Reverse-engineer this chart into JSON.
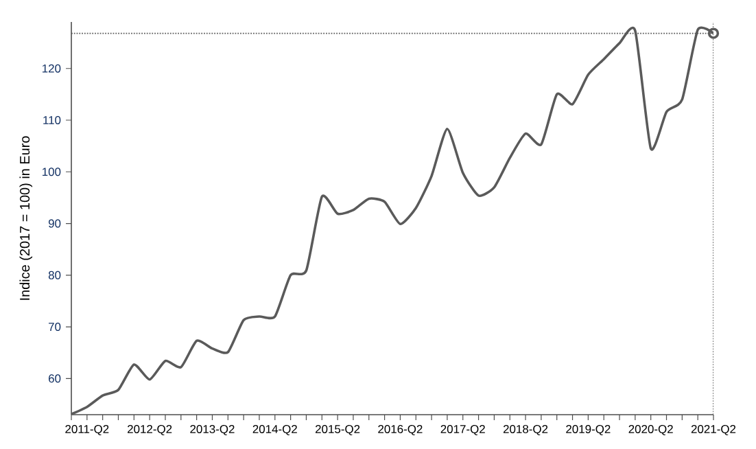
{
  "chart_data": {
    "type": "line",
    "ylabel": "Indice (2017 = 100) in Euro",
    "categories": [
      null,
      "2011-Q2",
      null,
      null,
      null,
      "2012-Q2",
      null,
      null,
      null,
      "2013-Q2",
      null,
      null,
      null,
      "2014-Q2",
      null,
      null,
      null,
      "2015-Q2",
      null,
      null,
      null,
      "2016-Q2",
      null,
      null,
      null,
      "2017-Q2",
      null,
      null,
      null,
      "2018-Q2",
      null,
      null,
      null,
      "2019-Q2",
      null,
      null,
      null,
      "2020-Q2",
      null,
      null,
      null,
      "2021-Q2"
    ],
    "series": [
      {
        "color": "#5a5a5a",
        "values": [
          53.1,
          54.5,
          56.7,
          57.8,
          62.7,
          59.8,
          63.4,
          62.2,
          67.3,
          65.8,
          65.1,
          71.3,
          72.0,
          72.0,
          80.0,
          80.9,
          95.2,
          91.9,
          92.6,
          94.8,
          94.2,
          89.9,
          93.0,
          99.2,
          108.3,
          99.8,
          95.4,
          97.0,
          102.7,
          107.4,
          105.3,
          115.0,
          113.1,
          118.8,
          121.8,
          124.9,
          127.3,
          104.5,
          111.6,
          114.0,
          127.5,
          126.8
        ]
      },
      {
        "type": "scatter",
        "marker": "circle",
        "color": "#5a5a5a",
        "x": [
          "2021-Q2"
        ],
        "values": [
          126.8
        ]
      }
    ],
    "ylim": [
      53,
      129
    ],
    "yticks": [
      60,
      70,
      80,
      90,
      100,
      110,
      120
    ],
    "ref_lines": [
      {
        "axis": "y",
        "value": 126.8,
        "color": "#5a5a5a",
        "line_style": "dotted"
      },
      {
        "axis": "x",
        "value": "2021-Q2",
        "color": "#5a5a5a",
        "line_style": "dotted"
      }
    ],
    "grid": false,
    "marker": "none",
    "line_style": "solid"
  }
}
